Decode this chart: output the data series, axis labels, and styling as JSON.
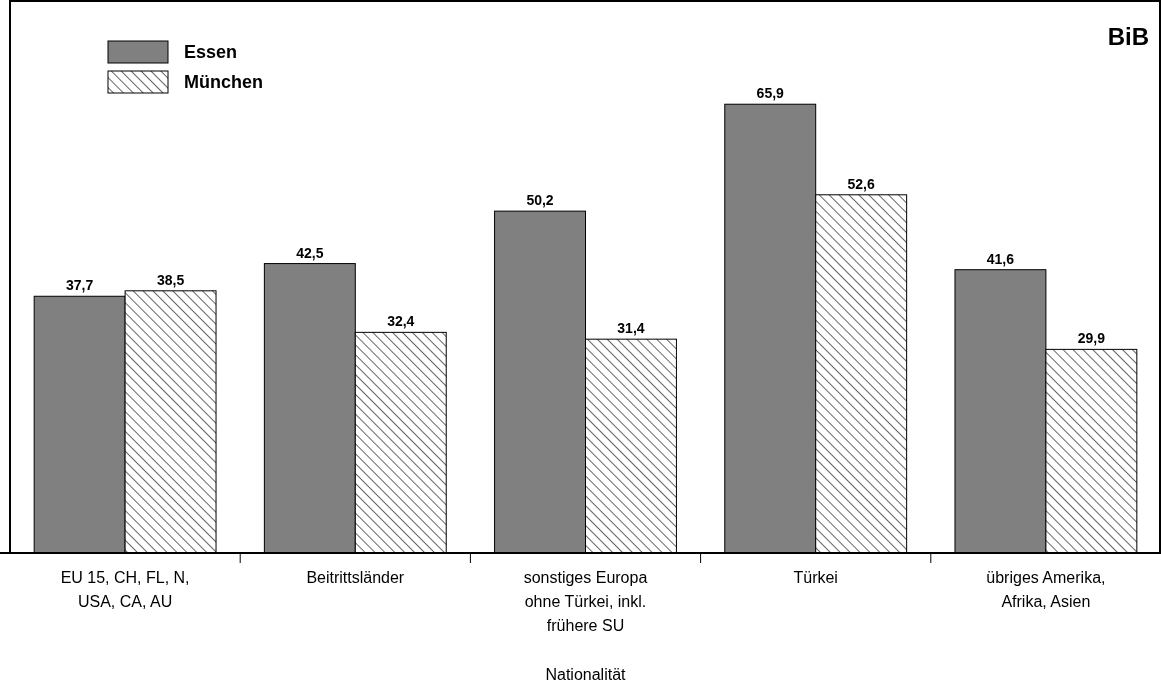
{
  "chart_data": {
    "type": "bar",
    "xlabel": "Nationalität",
    "annotations": [
      "BiB"
    ],
    "categories": [
      "EU 15, CH, FL, N, USA, CA, AU",
      "Beitrittsländer",
      "sonstiges Europa ohne Türkei, inkl. frühere SU",
      "Türkei",
      "übriges Amerika, Afrika, Asien"
    ],
    "series": [
      {
        "name": "Essen",
        "color": "#808080",
        "values": [
          37.7,
          42.5,
          50.2,
          65.9,
          41.6
        ],
        "value_labels": [
          "37,7",
          "42,5",
          "50,2",
          "65,9",
          "41,6"
        ]
      },
      {
        "name": "München",
        "color": "#000000",
        "values": [
          38.5,
          32.4,
          31.4,
          52.6,
          29.9
        ],
        "value_labels": [
          "38,5",
          "32,4",
          "31,4",
          "52,6",
          "29,9"
        ]
      }
    ],
    "legend": "top left"
  }
}
